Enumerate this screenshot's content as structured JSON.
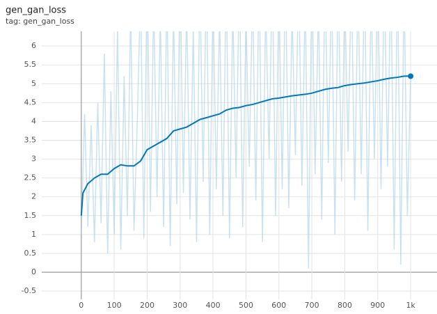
{
  "chart_data": {
    "type": "line",
    "title": "gen_gan_loss",
    "subtitle": "tag: gen_gan_loss",
    "xlim": [
      -120,
      1080
    ],
    "ylim": [
      -0.72,
      6.39
    ],
    "xticks": [
      0,
      100,
      200,
      300,
      400,
      500,
      600,
      700,
      800,
      900,
      {
        "value": 1000,
        "label": "1k"
      }
    ],
    "yticks": [
      -0.5,
      0,
      0.5,
      1,
      1.5,
      2,
      2.5,
      3,
      3.5,
      4,
      4.5,
      5,
      5.5,
      6
    ],
    "grid": true,
    "series": [
      {
        "color": "#a6cfe6",
        "x": [
          0,
          10,
          20,
          30,
          40,
          50,
          60,
          70,
          80,
          90,
          100,
          110,
          120,
          130,
          140,
          150,
          160,
          170,
          180,
          190,
          200,
          210,
          220,
          230,
          240,
          250,
          260,
          270,
          280,
          290,
          300,
          310,
          320,
          330,
          340,
          350,
          360,
          370,
          380,
          390,
          400,
          410,
          420,
          430,
          440,
          450,
          460,
          470,
          480,
          490,
          500,
          510,
          520,
          530,
          540,
          550,
          560,
          570,
          580,
          590,
          600,
          610,
          620,
          630,
          640,
          650,
          660,
          670,
          680,
          690,
          700,
          710,
          720,
          730,
          740,
          750,
          760,
          770,
          780,
          790,
          800,
          810,
          820,
          830,
          840,
          850,
          860,
          870,
          880,
          890,
          900,
          910,
          920,
          930,
          940,
          950,
          960,
          970,
          980,
          990,
          1000
        ],
        "values": [
          1.0,
          4.2,
          1.2,
          3.9,
          0.8,
          4.5,
          1.3,
          5.8,
          0.5,
          4.8,
          1.0,
          6.5,
          0.6,
          5.2,
          1.5,
          7.0,
          1.1,
          4.0,
          7.5,
          0.9,
          8.0,
          1.6,
          7.2,
          2.0,
          6.8,
          1.2,
          7.5,
          0.7,
          6.9,
          1.8,
          8.0,
          2.1,
          7.1,
          1.4,
          6.5,
          0.8,
          7.8,
          2.4,
          8.0,
          1.0,
          7.4,
          2.2,
          6.9,
          1.5,
          8.0,
          0.9,
          7.0,
          2.5,
          8.0,
          1.2,
          6.8,
          2.8,
          7.5,
          1.9,
          8.0,
          0.8,
          7.2,
          3.0,
          8.0,
          1.5,
          7.6,
          2.2,
          8.0,
          1.7,
          6.9,
          3.1,
          8.0,
          2.3,
          7.4,
          0.1,
          8.0,
          2.6,
          7.1,
          1.4,
          8.0,
          2.9,
          7.8,
          1.0,
          8.0,
          2.4,
          7.3,
          3.2,
          8.0,
          1.9,
          7.7,
          2.6,
          8.0,
          1.1,
          7.5,
          3.0,
          8.0,
          2.2,
          7.9,
          2.8,
          8.0,
          0.6,
          8.0,
          0.2,
          7.6,
          1.5,
          5.2
        ]
      },
      {
        "color": "#0077bb",
        "x": [
          0,
          5,
          20,
          40,
          60,
          80,
          100,
          120,
          140,
          160,
          180,
          200,
          220,
          240,
          260,
          280,
          300,
          320,
          340,
          360,
          380,
          400,
          420,
          440,
          460,
          480,
          500,
          520,
          540,
          560,
          580,
          600,
          620,
          640,
          660,
          680,
          700,
          720,
          740,
          760,
          780,
          800,
          820,
          840,
          860,
          880,
          900,
          920,
          940,
          960,
          980,
          1000
        ],
        "values": [
          1.5,
          2.1,
          2.35,
          2.5,
          2.6,
          2.6,
          2.75,
          2.85,
          2.82,
          2.82,
          2.95,
          3.25,
          3.35,
          3.45,
          3.55,
          3.75,
          3.8,
          3.85,
          3.95,
          4.05,
          4.1,
          4.15,
          4.2,
          4.3,
          4.35,
          4.37,
          4.42,
          4.45,
          4.5,
          4.55,
          4.6,
          4.62,
          4.65,
          4.68,
          4.7,
          4.72,
          4.75,
          4.8,
          4.85,
          4.88,
          4.9,
          4.95,
          4.98,
          5.0,
          5.02,
          5.05,
          5.08,
          5.12,
          5.15,
          5.17,
          5.2,
          5.2
        ]
      }
    ]
  }
}
